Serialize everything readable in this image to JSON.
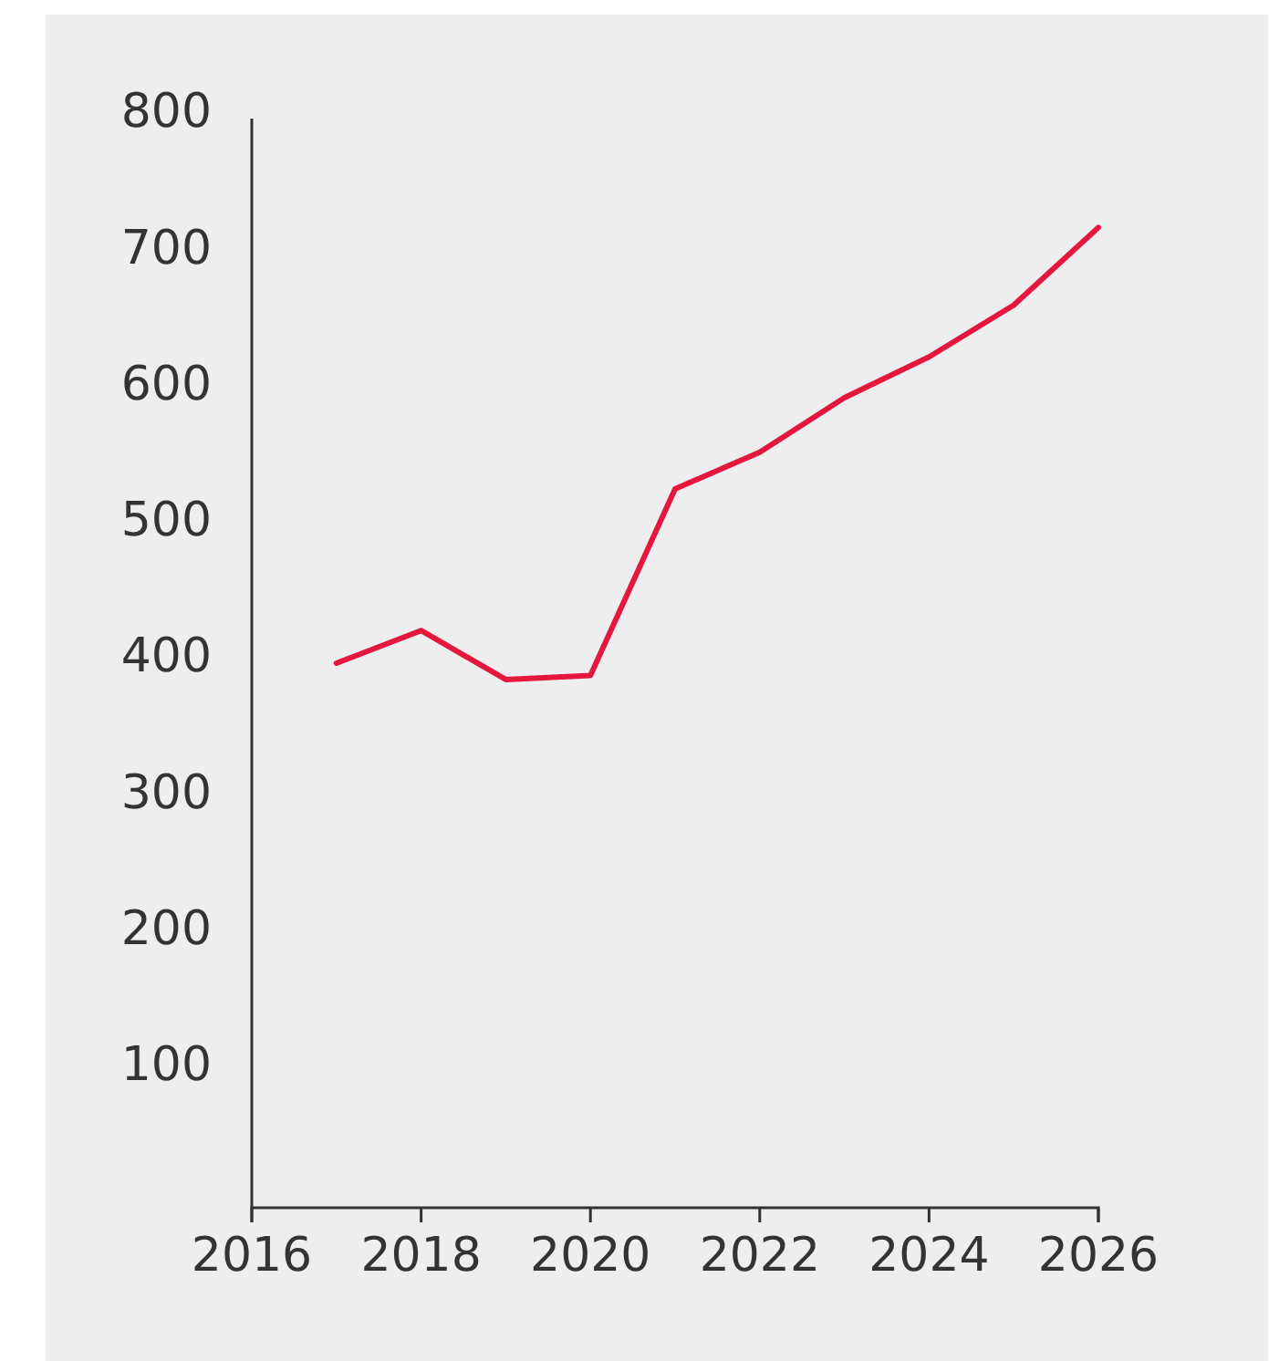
{
  "chart_data": {
    "type": "line",
    "x": [
      2017,
      2018,
      2019,
      2020,
      2021,
      2022,
      2023,
      2024,
      2025,
      2026
    ],
    "series": [
      {
        "color": "#e5173f",
        "values": [
          400,
          424,
          388,
          391,
          528,
          555,
          595,
          625,
          663,
          720
        ]
      }
    ],
    "xlim": [
      2016,
      2026
    ],
    "xticks": [
      2016,
      2018,
      2020,
      2022,
      2024,
      2026
    ],
    "ylim": [
      0,
      800
    ],
    "yticks": [
      100,
      200,
      300,
      400,
      500,
      600,
      700,
      800
    ],
    "grid": false,
    "marker": "none",
    "line_style": "solid"
  }
}
